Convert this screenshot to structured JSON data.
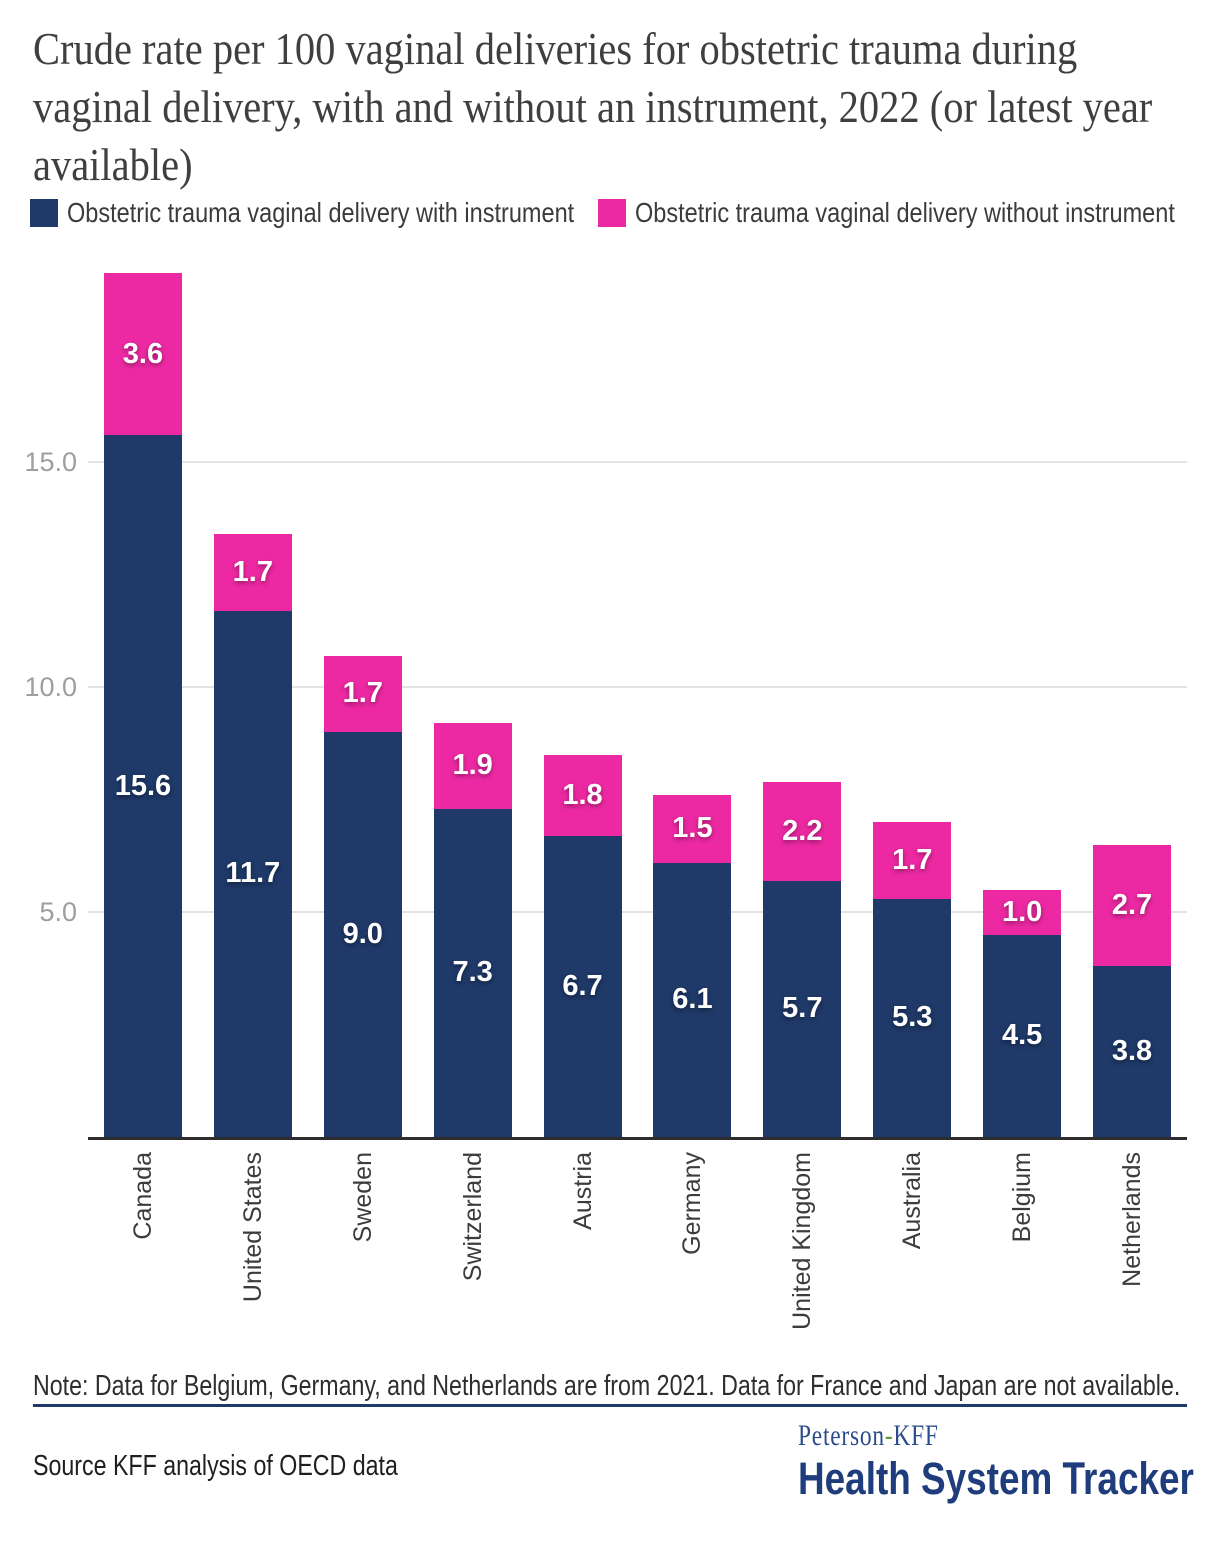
{
  "title": {
    "full": "Crude rate per 100 vaginal deliveries for obstetric trauma during vaginal delivery, with and without an instrument, 2022 (or latest year available)",
    "lines": [
      "Crude rate per 100 vaginal deliveries for obstetric trauma during",
      "vaginal delivery, with and without an instrument, 2022 (or latest year",
      "available)"
    ]
  },
  "legend": {
    "items": [
      {
        "label": "Obstetric trauma vaginal delivery with instrument",
        "color": "#1f3969"
      },
      {
        "label": "Obstetric trauma vaginal delivery without instrument",
        "color": "#ec29a2"
      }
    ]
  },
  "chart_data": {
    "type": "bar",
    "stacked": true,
    "categories": [
      "Canada",
      "United States",
      "Sweden",
      "Switzerland",
      "Austria",
      "Germany",
      "United Kingdom",
      "Australia",
      "Belgium",
      "Netherlands"
    ],
    "series": [
      {
        "name": "Obstetric trauma vaginal delivery with instrument",
        "color": "#1f3969",
        "values": [
          15.6,
          11.7,
          9.0,
          7.3,
          6.7,
          6.1,
          5.7,
          5.3,
          4.5,
          3.8
        ]
      },
      {
        "name": "Obstetric trauma vaginal delivery without instrument",
        "color": "#ec29a2",
        "values": [
          3.6,
          1.7,
          1.7,
          1.9,
          1.8,
          1.5,
          2.2,
          1.7,
          1.0,
          2.7
        ]
      }
    ],
    "totals": [
      19.2,
      13.4,
      10.7,
      9.2,
      8.5,
      7.6,
      7.9,
      7.0,
      5.5,
      6.5
    ],
    "yticks": [
      5.0,
      10.0,
      15.0
    ],
    "ylim": [
      0,
      19.5
    ],
    "xlabel": "",
    "ylabel": "",
    "grid": "horizontal",
    "legend_position": "top",
    "value_label_format": "one-decimal, white, centered inside segment",
    "colors": {
      "grid": "#e3e3e3",
      "axis": "#2d2d2d",
      "tick_labels": "#9e9e9e",
      "category_labels": "#3c3c3c",
      "value_labels": "#ffffff"
    }
  },
  "note": "Note: Data for Belgium, Germany, and Netherlands are from 2021. Data for France and Japan are not available.",
  "source": "Source KFF analysis of OECD data",
  "logo": {
    "peterson": "Peterson",
    "hyphen": "-",
    "kff": "KFF",
    "tracker": "Health System Tracker"
  }
}
